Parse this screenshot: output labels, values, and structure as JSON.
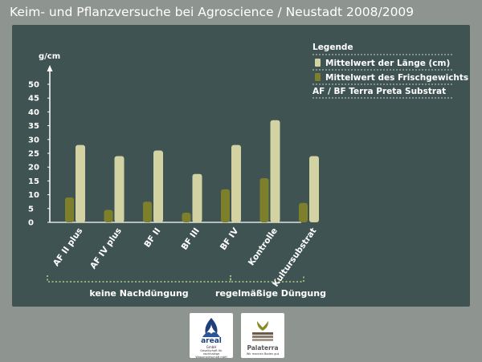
{
  "page": {
    "title": "Keim- und Pflanzversuche bei Agroscience / Neustadt 2008/2009"
  },
  "colors": {
    "background": "#8e9590",
    "panel": "#3f5452",
    "series_weight": "#7d7f2a",
    "series_length": "#d3d2a3"
  },
  "chart_data": {
    "type": "bar",
    "title": "Keim- und Pflanzversuche bei Agroscience / Neustadt 2008/2009",
    "ylabel": "g/cm",
    "xlabel": "",
    "ylim": [
      0,
      50
    ],
    "yticks": [
      0,
      5,
      10,
      15,
      20,
      25,
      30,
      35,
      40,
      45,
      50
    ],
    "grid": false,
    "categories": [
      "AF II plus",
      "AF IV plus",
      "BF II",
      "BF III",
      "BF IV",
      "Kontrolle",
      "Kultursubstrat"
    ],
    "series": [
      {
        "name": "Mittelwert des Frischgewichts (g)",
        "values": [
          9,
          4.5,
          7.5,
          3.5,
          12,
          16,
          7
        ]
      },
      {
        "name": "Mittelwert der Länge (cm)",
        "values": [
          28,
          24,
          26,
          17.5,
          28,
          37,
          24
        ]
      }
    ],
    "legend": {
      "title": "Legende",
      "placement": "top-right",
      "entries": [
        "Mittelwert der Länge (cm)",
        "Mittelwert des Frischgewichts (g)"
      ],
      "note": "AF / BF  Terra Preta Substrat"
    },
    "groups": [
      {
        "label": "keine Nachdüngung",
        "categories": [
          "AF II plus",
          "AF IV plus",
          "BF II",
          "BF III",
          "BF IV"
        ]
      },
      {
        "label": "regelmäßige Düngung",
        "categories": [
          "Kontrolle",
          "Kultursubstrat"
        ]
      }
    ]
  },
  "logos": {
    "areal": {
      "name": "areal",
      "suffix": "GmbH",
      "tagline": "Gesellschaft für nachhaltige Wasserwirtschaft mbH"
    },
    "palaterra": {
      "name": "Palaterra",
      "tagline": "Wir machen Boden gut"
    }
  }
}
